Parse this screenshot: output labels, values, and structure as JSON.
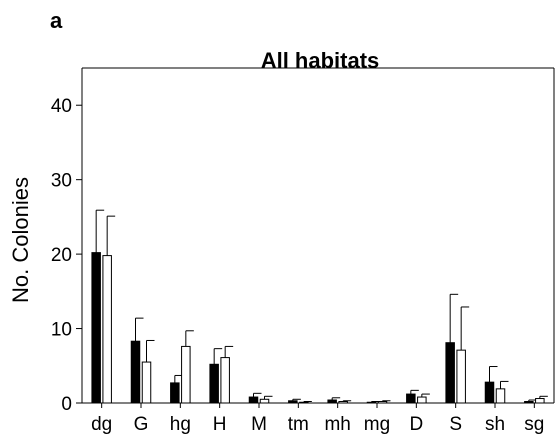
{
  "panel_label": "a",
  "chart_data": {
    "type": "bar",
    "title": "All habitats",
    "xlabel": "",
    "ylabel": "No. Colonies",
    "categories": [
      "dg",
      "G",
      "hg",
      "H",
      "M",
      "tm",
      "mh",
      "mg",
      "D",
      "S",
      "sh",
      "sg"
    ],
    "ylim": [
      0,
      45
    ],
    "yticks": [
      0,
      10,
      20,
      30,
      40
    ],
    "grid": false,
    "legend": "none",
    "error_bars": true,
    "series": [
      {
        "fill": "#000000",
        "values": [
          20.2,
          8.3,
          2.7,
          5.2,
          0.8,
          0.3,
          0.4,
          0.1,
          1.2,
          8.1,
          2.8,
          0.2
        ],
        "errors": [
          5.7,
          3.1,
          1.0,
          2.1,
          0.5,
          0.2,
          0.3,
          0.1,
          0.5,
          6.5,
          2.1,
          0.2
        ]
      },
      {
        "fill": "#ffffff",
        "values": [
          19.8,
          5.5,
          7.6,
          6.1,
          0.5,
          0.1,
          0.2,
          0.2,
          0.8,
          7.1,
          1.9,
          0.6
        ],
        "errors": [
          5.3,
          2.9,
          2.1,
          1.5,
          0.4,
          0.1,
          0.1,
          0.1,
          0.4,
          5.8,
          1.0,
          0.3
        ]
      }
    ]
  }
}
